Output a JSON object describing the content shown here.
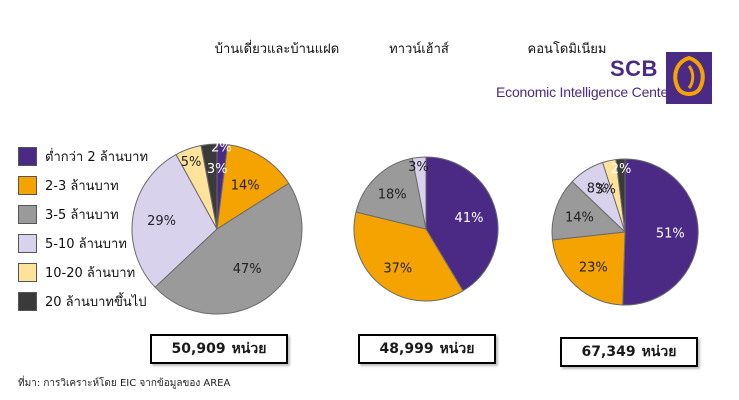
{
  "logo": {
    "name": "SCB",
    "subtitle": "Economic Intelligence Center"
  },
  "legend": [
    {
      "label": "ต่ำกว่า 2 ล้านบาท",
      "color": "#4b2a86"
    },
    {
      "label": "2-3 ล้านบาท",
      "color": "#f4a300"
    },
    {
      "label": "3-5 ล้านบาท",
      "color": "#9a9a9a"
    },
    {
      "label": "5-10 ล้านบาท",
      "color": "#d9d2ec"
    },
    {
      "label": "10-20 ล้านบาท",
      "color": "#ffe39b"
    },
    {
      "label": "20 ล้านบาทขึ้นไป",
      "color": "#3a3a3a"
    }
  ],
  "source": "ที่มา: การวิเคราะห์โดย EIC จากข้อมูลของ AREA",
  "chart_data": [
    {
      "type": "pie",
      "title": "บ้านเดี่ยวและบ้านแฝด",
      "categories": [
        "ต่ำกว่า 2 ล้านบาท",
        "2-3 ล้านบาท",
        "3-5 ล้านบาท",
        "5-10 ล้านบาท",
        "10-20 ล้านบาท",
        "20 ล้านบาทขึ้นไป"
      ],
      "values": [
        2,
        14,
        47,
        29,
        5,
        3
      ],
      "labels": [
        "2%",
        "14%",
        "47%",
        "29%",
        "5%",
        "3%"
      ],
      "total_value": "50,909",
      "total_unit": "หน่วย"
    },
    {
      "type": "pie",
      "title": "ทาวน์เฮ้าส์",
      "categories": [
        "ต่ำกว่า 2 ล้านบาท",
        "2-3 ล้านบาท",
        "3-5 ล้านบาท",
        "5-10 ล้านบาท"
      ],
      "values": [
        41,
        37,
        18,
        3
      ],
      "labels": [
        "41%",
        "37%",
        "18%",
        "3%"
      ],
      "total_value": "48,999",
      "total_unit": "หน่วย"
    },
    {
      "type": "pie",
      "title": "คอนโดมิเนียม",
      "categories": [
        "ต่ำกว่า 2 ล้านบาท",
        "2-3 ล้านบาท",
        "3-5 ล้านบาท",
        "5-10 ล้านบาท",
        "10-20 ล้านบาท",
        "20 ล้านบาทขึ้นไป"
      ],
      "values": [
        51,
        23,
        14,
        8,
        3,
        2
      ],
      "labels": [
        "51%",
        "23%",
        "14%",
        "8%",
        "3%",
        "2%"
      ],
      "total_value": "67,349",
      "total_unit": "หน่วย"
    }
  ]
}
